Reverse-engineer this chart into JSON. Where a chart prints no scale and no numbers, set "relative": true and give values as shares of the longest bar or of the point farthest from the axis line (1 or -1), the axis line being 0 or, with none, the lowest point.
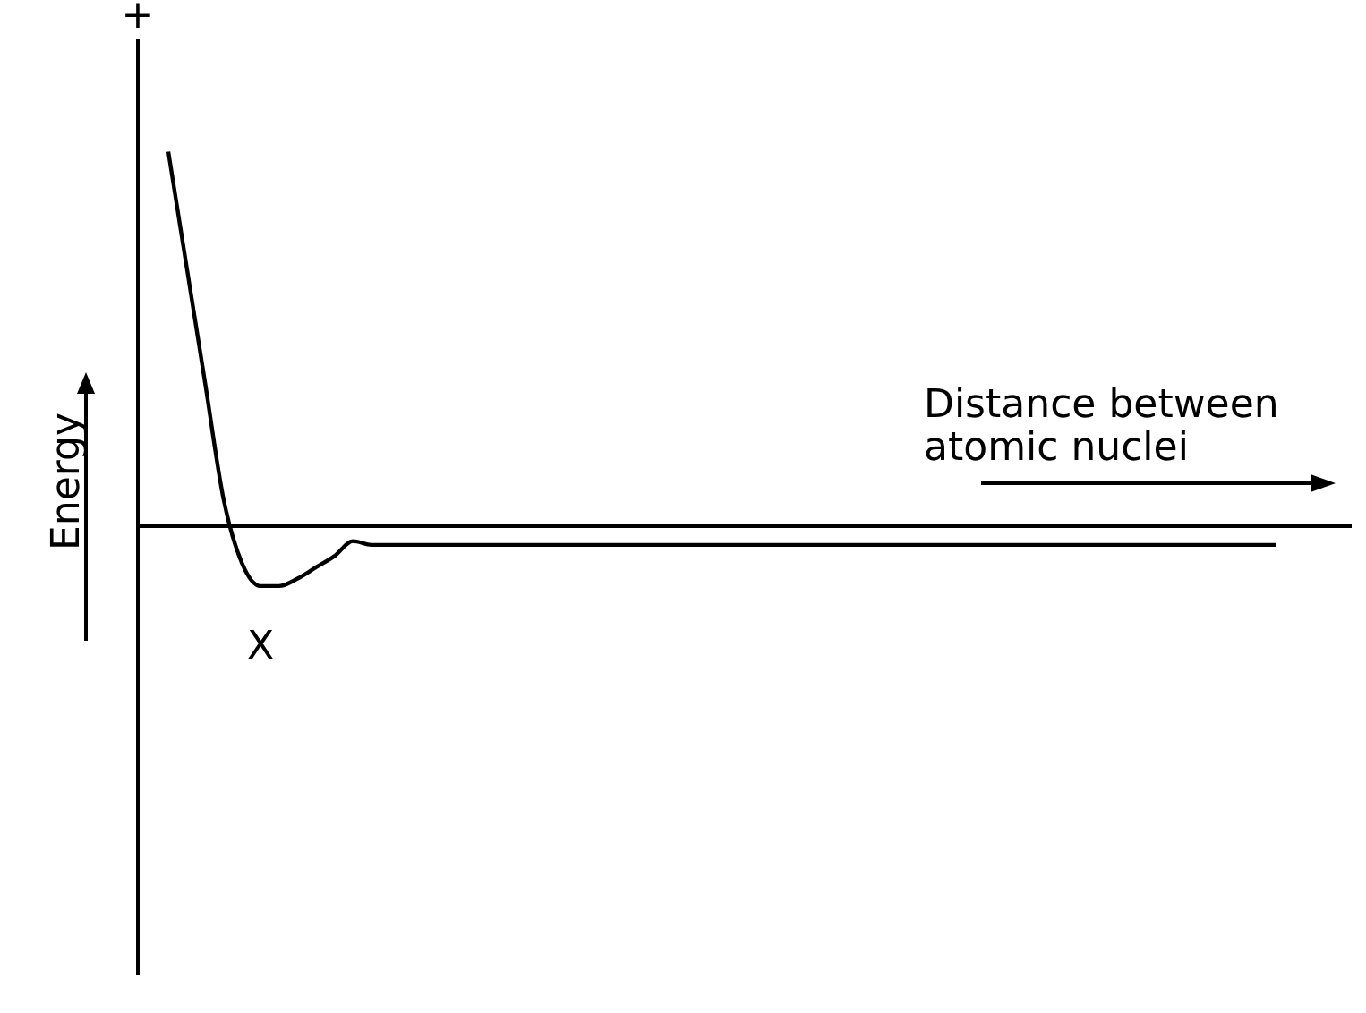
{
  "chart_data": {
    "type": "line",
    "relative": true,
    "color": "#000000",
    "xlabel": "Distance between\natomic nuclei",
    "ylabel": "Energy",
    "annotations": [
      "+",
      {
        "text": "X",
        "y": -0.16
      }
    ],
    "categories": [
      null,
      null,
      null,
      null,
      null,
      null,
      null,
      null,
      null,
      null,
      null,
      null,
      null,
      null,
      null,
      null,
      null,
      null,
      null,
      null,
      null,
      null,
      null,
      null,
      null,
      null,
      null,
      null,
      null,
      null,
      null,
      null,
      null,
      null,
      null,
      null,
      null,
      null,
      null,
      null,
      null,
      null,
      null,
      null,
      null,
      null,
      null,
      null,
      null,
      null,
      null,
      null,
      null,
      null,
      null,
      null,
      null,
      null,
      null,
      null,
      null
    ],
    "values": [
      1,
      0.69,
      0.38,
      0.07,
      -0.1,
      -0.16,
      -0.16,
      -0.14,
      -0.11,
      -0.08,
      -0.04,
      -0.05,
      -0.05,
      -0.05,
      -0.05,
      -0.05,
      -0.05,
      -0.05,
      -0.05,
      -0.05,
      -0.05,
      -0.05,
      -0.05,
      -0.05,
      -0.05,
      -0.05,
      -0.05,
      -0.05,
      -0.05,
      -0.05,
      -0.05,
      -0.05,
      -0.05,
      -0.05,
      -0.05,
      -0.05,
      -0.05,
      -0.05,
      -0.05,
      -0.05,
      -0.05,
      -0.05,
      -0.05,
      -0.05,
      -0.05,
      -0.05,
      -0.05,
      -0.05,
      -0.05,
      -0.05,
      -0.05,
      -0.05,
      -0.05,
      -0.05,
      -0.05,
      -0.05,
      -0.05,
      -0.05,
      -0.05,
      -0.05,
      -0.05
    ]
  }
}
